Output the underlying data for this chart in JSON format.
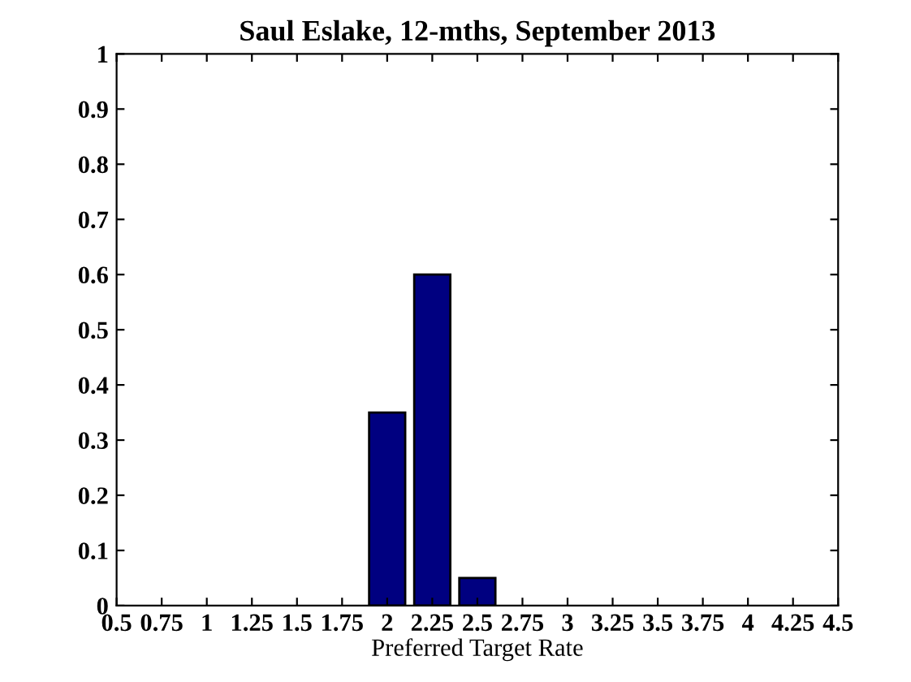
{
  "chart_data": {
    "type": "bar",
    "title": "Saul Eslake, 12-mths, September 2013",
    "xlabel": "Preferred Target Rate",
    "x": [
      2,
      2.25,
      2.5
    ],
    "series": [
      {
        "color": "#000080",
        "values": [
          0.35,
          0.6,
          0.05
        ]
      }
    ],
    "xlim": [
      0.5,
      4.5
    ],
    "xticks": [
      0.5,
      0.75,
      1,
      1.25,
      1.5,
      1.75,
      2,
      2.25,
      2.5,
      2.75,
      3,
      3.25,
      3.5,
      3.75,
      4,
      4.25,
      4.5
    ],
    "ylim": [
      0,
      1
    ],
    "yticks": [
      0,
      0.1,
      0.2,
      0.3,
      0.4,
      0.5,
      0.6,
      0.7,
      0.8,
      0.9,
      1
    ],
    "grid": false
  }
}
